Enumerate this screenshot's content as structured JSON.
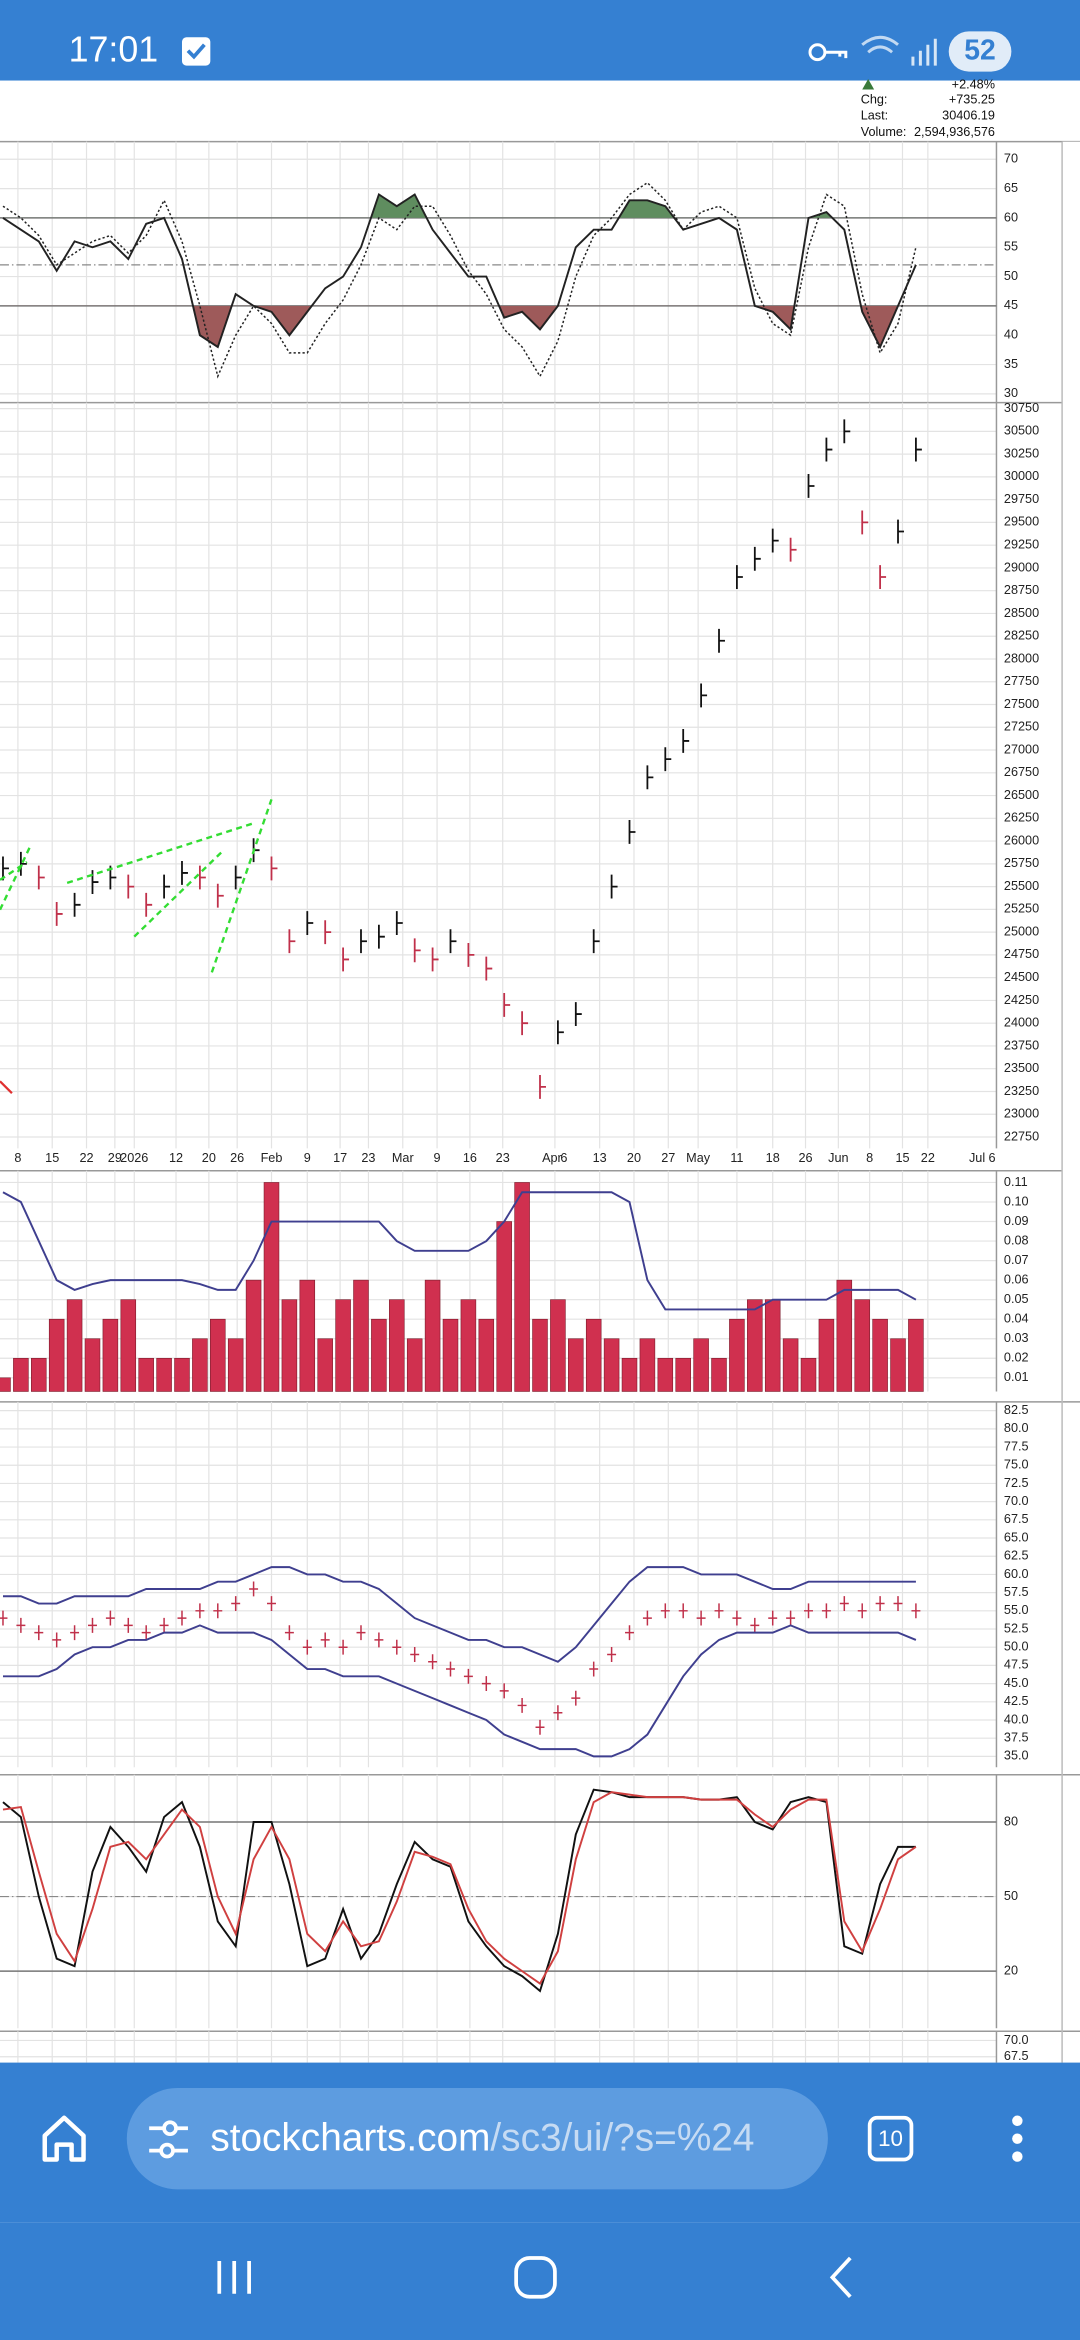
{
  "status_bar": {
    "time": "17:01",
    "battery": "52"
  },
  "quote": {
    "change_pct": "+2.48%",
    "chg_label": "Chg:",
    "chg": "+735.25",
    "last_label": "Last:",
    "last": "30406.19",
    "volume_label": "Volume:",
    "volume": "2,594,936,576"
  },
  "chart_data": [
    {
      "type": "line",
      "ylim": [
        28.5,
        73
      ],
      "yticks": [
        70,
        65,
        60,
        55,
        50,
        45,
        40,
        35,
        30
      ],
      "reference_lines": [
        60,
        45
      ],
      "midline": 52,
      "shade": true,
      "shade_colors": [
        "#5f8d5f",
        "#9e5a5a"
      ],
      "grid": true,
      "series": [
        {
          "color": "#222222",
          "style": "solid",
          "values": [
            60,
            58,
            56,
            51,
            56,
            55,
            56,
            53,
            59,
            60,
            53,
            40,
            38,
            47,
            45,
            44,
            40,
            44,
            48,
            50,
            55,
            64,
            62,
            64,
            58,
            54,
            50,
            50,
            43,
            44,
            41,
            45,
            55,
            58,
            58,
            63,
            63,
            62,
            58,
            59,
            60,
            58,
            45,
            44,
            41,
            60,
            61,
            58,
            44,
            38,
            45,
            52
          ]
        },
        {
          "color": "#222222",
          "style": "dotted",
          "values": [
            62,
            60,
            57,
            52,
            54,
            56,
            57,
            54,
            57,
            63,
            56,
            45,
            33,
            40,
            45,
            42,
            37,
            37,
            42,
            46,
            52,
            60,
            58,
            62,
            62,
            57,
            51,
            47,
            41,
            38,
            33,
            39,
            50,
            57,
            60,
            64,
            66,
            63,
            58,
            61,
            62,
            60,
            48,
            42,
            40,
            55,
            64,
            62,
            47,
            37,
            42,
            55
          ]
        }
      ]
    },
    {
      "type": "price",
      "ylim": [
        22625,
        30815
      ],
      "yticks": [
        30750,
        30500,
        30250,
        30000,
        29750,
        29500,
        29250,
        29000,
        28750,
        28500,
        28250,
        28000,
        27750,
        27500,
        27250,
        27000,
        26750,
        26500,
        26250,
        26000,
        25750,
        25500,
        25250,
        25000,
        24750,
        24500,
        24250,
        24000,
        23750,
        23500,
        23250,
        23000,
        22750
      ],
      "grid": true,
      "x_labels": [
        "8",
        "15",
        "22",
        "29",
        "2026",
        "12",
        "20",
        "26",
        "Feb",
        "9",
        "17",
        "23",
        "Mar",
        "9",
        "16",
        "23",
        "Apr",
        "6",
        "13",
        "20",
        "27",
        "May",
        "11",
        "18",
        "26",
        "Jun",
        "8",
        "15",
        "22",
        "Jul",
        "6"
      ],
      "series": [
        {
          "color": "#111111",
          "down_color": "#c0304a",
          "values": [
            25700,
            25750,
            25600,
            25200,
            25300,
            25550,
            25600,
            25500,
            25300,
            25500,
            25650,
            25600,
            25400,
            25600,
            25900,
            25700,
            24900,
            25100,
            25000,
            24700,
            24900,
            24950,
            25100,
            24800,
            24700,
            24900,
            24750,
            24600,
            24200,
            24000,
            23300,
            23900,
            24100,
            24900,
            25500,
            26100,
            26700,
            26900,
            27100,
            27600,
            28200,
            28900,
            29100,
            29300,
            29200,
            29900,
            30300,
            30500,
            29500,
            28900,
            29400,
            30300
          ]
        }
      ]
    },
    {
      "type": "bar",
      "ylim": [
        0.003,
        0.116
      ],
      "yticks": [
        0.11,
        {
          "value": 0.1,
          "label": "0.10"
        },
        0.09,
        0.08,
        0.07,
        0.06,
        0.05,
        0.04,
        0.03,
        0.02,
        0.01
      ],
      "grid": true,
      "series": [
        {
          "color": "#d0304f",
          "style": "bars",
          "values": [
            0.01,
            0.02,
            0.02,
            0.04,
            0.05,
            0.03,
            0.04,
            0.05,
            0.02,
            0.02,
            0.02,
            0.03,
            0.04,
            0.03,
            0.06,
            0.11,
            0.05,
            0.06,
            0.03,
            0.05,
            0.06,
            0.04,
            0.05,
            0.03,
            0.06,
            0.04,
            0.05,
            0.04,
            0.09,
            0.11,
            0.04,
            0.05,
            0.03,
            0.04,
            0.03,
            0.02,
            0.03,
            0.02,
            0.02,
            0.03,
            0.02,
            0.04,
            0.05,
            0.05,
            0.03,
            0.02,
            0.04,
            0.06,
            0.05,
            0.04,
            0.03,
            0.04
          ]
        },
        {
          "color": "#3f3f8f",
          "style": "solid",
          "values": [
            0.105,
            0.1,
            0.08,
            0.06,
            0.055,
            0.058,
            0.06,
            0.06,
            0.06,
            0.06,
            0.06,
            0.058,
            0.055,
            0.055,
            0.07,
            0.09,
            0.09,
            0.09,
            0.09,
            0.09,
            0.09,
            0.09,
            0.08,
            0.075,
            0.075,
            0.075,
            0.075,
            0.08,
            0.09,
            0.105,
            0.105,
            0.105,
            0.105,
            0.105,
            0.105,
            0.1,
            0.06,
            0.045,
            0.045,
            0.045,
            0.045,
            0.045,
            0.045,
            0.05,
            0.05,
            0.05,
            0.05,
            0.055,
            0.055,
            0.055,
            0.055,
            0.05
          ]
        }
      ]
    },
    {
      "type": "line",
      "ylim": [
        33.5,
        83.7
      ],
      "yticks": [
        82.5,
        {
          "value": 80,
          "label": "80.0"
        },
        77.5,
        {
          "value": 75,
          "label": "75.0"
        },
        72.5,
        {
          "value": 70,
          "label": "70.0"
        },
        67.5,
        {
          "value": 65,
          "label": "65.0"
        },
        62.5,
        {
          "value": 60,
          "label": "60.0"
        },
        57.5,
        {
          "value": 55,
          "label": "55.0"
        },
        52.5,
        {
          "value": 50,
          "label": "50.0"
        },
        47.5,
        {
          "value": 45,
          "label": "45.0"
        },
        42.5,
        {
          "value": 40,
          "label": "40.0"
        },
        37.5,
        {
          "value": 35,
          "label": "35.0"
        }
      ],
      "grid": true,
      "series": [
        {
          "color": "#c0304a",
          "style": "ticks",
          "values": [
            54,
            53,
            52,
            51,
            52,
            53,
            54,
            53,
            52,
            53,
            54,
            55,
            55,
            56,
            58,
            56,
            52,
            50,
            51,
            50,
            52,
            51,
            50,
            49,
            48,
            47,
            46,
            45,
            44,
            42,
            39,
            41,
            43,
            47,
            49,
            52,
            54,
            55,
            55,
            54,
            55,
            54,
            53,
            54,
            54,
            55,
            55,
            56,
            55,
            56,
            56,
            55
          ]
        },
        {
          "color": "#3f3f8f",
          "style": "solid",
          "values": [
            57,
            57,
            56,
            56,
            57,
            57,
            57,
            57,
            58,
            58,
            58,
            58,
            59,
            59,
            60,
            61,
            61,
            60,
            60,
            59,
            59,
            58,
            56,
            54,
            53,
            52,
            51,
            51,
            50,
            50,
            49,
            48,
            50,
            53,
            56,
            59,
            61,
            61,
            61,
            60,
            60,
            60,
            59,
            58,
            58,
            59,
            59,
            59,
            59,
            59,
            59,
            59
          ]
        },
        {
          "color": "#3f3f8f",
          "style": "solid",
          "values": [
            46,
            46,
            46,
            47,
            49,
            50,
            50,
            51,
            51,
            52,
            52,
            53,
            52,
            52,
            52,
            51,
            49,
            47,
            47,
            46,
            46,
            46,
            45,
            44,
            43,
            42,
            41,
            40,
            38,
            37,
            36,
            36,
            36,
            35,
            35,
            36,
            38,
            42,
            46,
            49,
            51,
            52,
            52,
            52,
            53,
            52,
            52,
            52,
            52,
            52,
            52,
            51
          ]
        }
      ]
    },
    {
      "type": "line",
      "ylim": [
        -3,
        99
      ],
      "yticks": [
        80,
        50,
        20
      ],
      "reference_lines": [
        80,
        20
      ],
      "midline": 50,
      "grid": true,
      "series": [
        {
          "color": "#111111",
          "style": "solid",
          "values": [
            88,
            82,
            50,
            25,
            22,
            60,
            78,
            70,
            60,
            82,
            88,
            70,
            40,
            30,
            80,
            80,
            55,
            22,
            25,
            45,
            25,
            35,
            55,
            72,
            65,
            62,
            40,
            30,
            22,
            18,
            12,
            35,
            75,
            93,
            92,
            90,
            90,
            90,
            90,
            89,
            89,
            90,
            80,
            77,
            88,
            90,
            88,
            30,
            27,
            55,
            70,
            70
          ]
        },
        {
          "color": "#d04040",
          "style": "solid",
          "values": [
            85,
            86,
            60,
            35,
            24,
            45,
            70,
            72,
            65,
            75,
            85,
            78,
            50,
            35,
            65,
            78,
            65,
            35,
            28,
            40,
            30,
            32,
            48,
            68,
            66,
            63,
            45,
            32,
            25,
            20,
            15,
            28,
            65,
            88,
            92,
            91,
            90,
            90,
            90,
            89,
            89,
            89,
            83,
            78,
            85,
            89,
            89,
            40,
            28,
            45,
            65,
            70
          ]
        }
      ]
    },
    {
      "type": "line",
      "ylim": [
        66.6,
        71.4
      ],
      "yticks": [
        {
          "value": 70,
          "label": "70.0"
        },
        67.5
      ],
      "grid": true,
      "series": []
    }
  ],
  "browser": {
    "url_host": "stockcharts.com",
    "url_path": "/sc3/ui/?s=%24",
    "tabs": "10"
  }
}
